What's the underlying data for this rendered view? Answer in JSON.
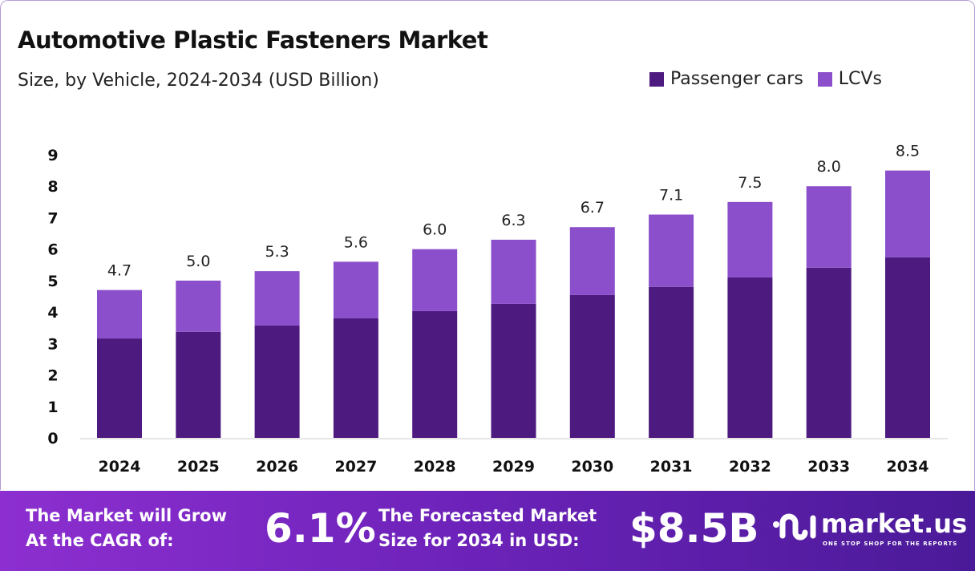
{
  "chart_data": {
    "type": "bar",
    "stacked": true,
    "title": "Automotive Plastic Fasteners Market",
    "subtitle": "Size, by Vehicle, 2024-2034 (USD Billion)",
    "categories": [
      "2024",
      "2025",
      "2026",
      "2027",
      "2028",
      "2029",
      "2030",
      "2031",
      "2032",
      "2033",
      "2034"
    ],
    "series": [
      {
        "name": "Passenger cars",
        "color": "#4d1a80",
        "values": [
          3.16,
          3.37,
          3.57,
          3.8,
          4.03,
          4.26,
          4.54,
          4.8,
          5.1,
          5.41,
          5.74
        ]
      },
      {
        "name": "LCVs",
        "color": "#8b4fcb",
        "values": [
          1.54,
          1.63,
          1.73,
          1.8,
          1.97,
          2.04,
          2.16,
          2.3,
          2.4,
          2.59,
          2.76
        ]
      }
    ],
    "totals": [
      "4.7",
      "5.0",
      "5.3",
      "5.6",
      "6.0",
      "6.3",
      "6.7",
      "7.1",
      "7.5",
      "8.0",
      "8.5"
    ],
    "ylim": [
      0,
      9
    ],
    "yticks": [
      "0",
      "1",
      "2",
      "3",
      "4",
      "5",
      "6",
      "7",
      "8",
      "9"
    ],
    "grid": false,
    "legend": "top-right"
  },
  "footer": {
    "cagr_label_1": "The Market will Grow",
    "cagr_label_2": "At the CAGR of:",
    "cagr_value": "6.1%",
    "forecast_label_1": "The Forecasted Market",
    "forecast_label_2": "Size for 2034 in USD:",
    "forecast_value": "$8.5B",
    "logo_name": "market.us",
    "logo_tagline": "ONE STOP SHOP FOR THE REPORTS"
  }
}
